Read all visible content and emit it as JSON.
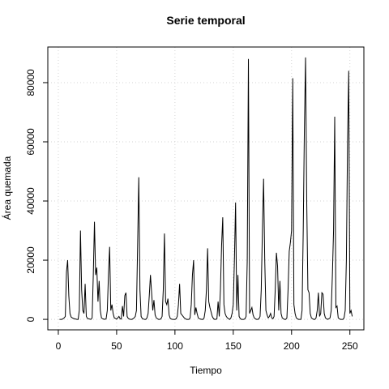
{
  "chart_data": {
    "type": "line",
    "title": "Serie temporal",
    "x_label": "Tiempo",
    "y_label": "Área quemada",
    "color": "#000000",
    "grid": true,
    "xlim": [
      -9,
      262
    ],
    "ylim": [
      -3540,
      92040
    ],
    "xticks": [
      0,
      50,
      100,
      150,
      200,
      250
    ],
    "yticks": [
      0,
      20000,
      40000,
      60000,
      80000
    ],
    "x": [
      1,
      2,
      3,
      4,
      5,
      6,
      7,
      8,
      9,
      10,
      11,
      12,
      13,
      14,
      15,
      16,
      17,
      18,
      19,
      20,
      21,
      22,
      23,
      24,
      25,
      26,
      27,
      28,
      29,
      30,
      31,
      32,
      33,
      34,
      35,
      36,
      37,
      38,
      39,
      40,
      41,
      42,
      43,
      44,
      45,
      46,
      47,
      48,
      49,
      50,
      51,
      52,
      53,
      54,
      55,
      56,
      57,
      58,
      59,
      60,
      61,
      62,
      63,
      64,
      65,
      66,
      67,
      68,
      69,
      70,
      71,
      72,
      73,
      74,
      75,
      76,
      77,
      78,
      79,
      80,
      81,
      82,
      83,
      84,
      85,
      86,
      87,
      88,
      89,
      90,
      91,
      92,
      93,
      94,
      95,
      96,
      97,
      98,
      99,
      100,
      101,
      102,
      103,
      104,
      105,
      106,
      107,
      108,
      109,
      110,
      111,
      112,
      113,
      114,
      115,
      116,
      117,
      118,
      119,
      120,
      121,
      122,
      123,
      124,
      125,
      126,
      127,
      128,
      129,
      130,
      131,
      132,
      133,
      134,
      135,
      136,
      137,
      138,
      139,
      140,
      141,
      142,
      143,
      144,
      145,
      146,
      147,
      148,
      149,
      150,
      151,
      152,
      153,
      154,
      155,
      156,
      157,
      158,
      159,
      160,
      161,
      162,
      163,
      164,
      165,
      166,
      167,
      168,
      169,
      170,
      171,
      172,
      173,
      174,
      175,
      176,
      177,
      178,
      179,
      180,
      181,
      182,
      183,
      184,
      185,
      186,
      187,
      188,
      189,
      190,
      191,
      192,
      193,
      194,
      195,
      196,
      197,
      198,
      199,
      200,
      201,
      202,
      203,
      204,
      205,
      206,
      207,
      208,
      209,
      210,
      211,
      212,
      213,
      214,
      215,
      216,
      217,
      218,
      219,
      220,
      221,
      222,
      223,
      224,
      225,
      226,
      227,
      228,
      229,
      230,
      231,
      232,
      233,
      234,
      235,
      236,
      237,
      238,
      239,
      240,
      241,
      242,
      243,
      244,
      245,
      246,
      247,
      248,
      249,
      250,
      251,
      252
    ],
    "values": [
      0,
      0,
      0,
      200,
      500,
      1000,
      16000,
      20000,
      8000,
      2000,
      800,
      500,
      300,
      200,
      100,
      0,
      0,
      3000,
      30000,
      10000,
      3000,
      2000,
      12000,
      1000,
      300,
      200,
      100,
      0,
      500,
      15000,
      33000,
      15000,
      17500,
      6000,
      13000,
      3000,
      500,
      200,
      100,
      0,
      200,
      3000,
      15000,
      24500,
      3000,
      5000,
      2000,
      500,
      300,
      100,
      500,
      1000,
      200,
      100,
      4500,
      1000,
      8000,
      9000,
      1000,
      300,
      100,
      0,
      0,
      200,
      500,
      1000,
      3000,
      25000,
      48000,
      10000,
      1000,
      300,
      100,
      0,
      0,
      500,
      2000,
      8000,
      15000,
      9000,
      3000,
      6500,
      1500,
      500,
      200,
      0,
      0,
      200,
      1000,
      10000,
      29000,
      6000,
      5000,
      7000,
      1500,
      300,
      100,
      0,
      0,
      0,
      200,
      1000,
      5000,
      12000,
      2000,
      1500,
      1000,
      500,
      200,
      0,
      0,
      0,
      500,
      5000,
      15000,
      20000,
      1500,
      4000,
      2000,
      500,
      200,
      100,
      0,
      0,
      500,
      3000,
      10000,
      24000,
      6000,
      4000,
      2500,
      1000,
      300,
      0,
      0,
      200,
      6000,
      1000,
      10000,
      25000,
      34500,
      5000,
      2000,
      1000,
      500,
      200,
      0,
      500,
      2000,
      5000,
      20000,
      39500,
      3000,
      15000,
      1000,
      300,
      0,
      0,
      0,
      200,
      1000,
      20000,
      88000,
      2000,
      3000,
      4000,
      1500,
      500,
      200,
      0,
      0,
      200,
      1000,
      10000,
      30000,
      47500,
      20000,
      3000,
      1500,
      500,
      1000,
      2000,
      500,
      200,
      1000,
      10000,
      22500,
      18000,
      3000,
      13000,
      2000,
      500,
      200,
      0,
      0,
      500,
      10000,
      23000,
      26000,
      30000,
      81500,
      5000,
      2000,
      500,
      200,
      0,
      0,
      0,
      3000,
      30000,
      65000,
      88500,
      40000,
      10000,
      9000,
      2000,
      500,
      200,
      0,
      0,
      500,
      3000,
      9000,
      1000,
      2000,
      9000,
      8500,
      2000,
      500,
      200,
      0,
      200,
      500,
      3000,
      15000,
      30000,
      68500,
      4000,
      4500,
      500,
      200,
      0,
      0,
      0,
      500,
      3000,
      20000,
      60000,
      84000,
      2000,
      3000,
      1000
    ]
  }
}
